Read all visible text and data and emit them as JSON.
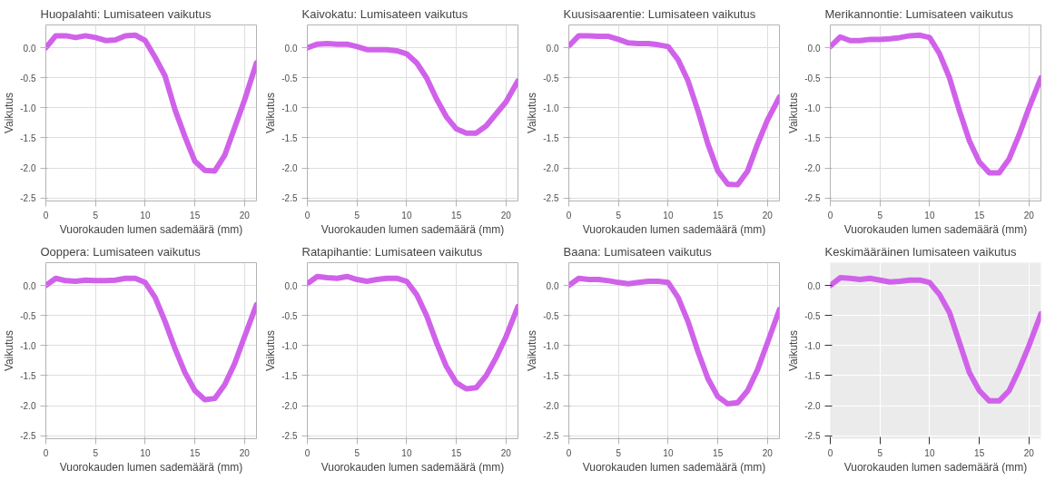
{
  "chart_data": [
    {
      "type": "line",
      "title": "Huopalahti: Lumisateen vaikutus",
      "xlabel": "Vuorokauden lumen sademäärä (mm)",
      "ylabel": "Vaikutus",
      "x": [
        0,
        1,
        2,
        3,
        4,
        5,
        6,
        7,
        8,
        9,
        10,
        11,
        12,
        13,
        14,
        15,
        16,
        17,
        18,
        19,
        20,
        21.2
      ],
      "series": [
        {
          "color": "#d062ea",
          "values": [
            0.0,
            0.2,
            0.2,
            0.17,
            0.2,
            0.17,
            0.12,
            0.13,
            0.2,
            0.21,
            0.12,
            -0.16,
            -0.47,
            -1.03,
            -1.48,
            -1.89,
            -2.04,
            -2.05,
            -1.79,
            -1.33,
            -0.87,
            -0.25
          ]
        }
      ],
      "xlim": [
        0,
        21.2
      ],
      "ylim": [
        -2.55,
        0.38
      ],
      "xticks": [
        0,
        5,
        10,
        15,
        20
      ],
      "yticks": [
        -2.5,
        {
          "value": -2,
          "label": "-2.0"
        },
        -1.5,
        {
          "value": -1,
          "label": "-1.0"
        },
        -0.5,
        {
          "value": 0,
          "label": "0.0"
        }
      ],
      "grid": true,
      "line_style": "solid"
    },
    {
      "type": "line",
      "title": "Kaivokatu: Lumisateen vaikutus",
      "xlabel": "Vuorokauden lumen sademäärä (mm)",
      "ylabel": "Vaikutus",
      "x": [
        0,
        1,
        2,
        3,
        4,
        5,
        6,
        7,
        8,
        9,
        10,
        11,
        12,
        13,
        14,
        15,
        16,
        17,
        18,
        19,
        20,
        21.2
      ],
      "series": [
        {
          "color": "#d062ea",
          "values": [
            0.0,
            0.06,
            0.07,
            0.06,
            0.06,
            0.02,
            -0.03,
            -0.03,
            -0.03,
            -0.05,
            -0.1,
            -0.25,
            -0.5,
            -0.85,
            -1.15,
            -1.35,
            -1.42,
            -1.42,
            -1.3,
            -1.1,
            -0.9,
            -0.55
          ]
        }
      ],
      "xlim": [
        0,
        21.2
      ],
      "ylim": [
        -2.55,
        0.38
      ],
      "xticks": [
        0,
        5,
        10,
        15,
        20
      ],
      "yticks": [
        -2.5,
        {
          "value": -2,
          "label": "-2.0"
        },
        -1.5,
        {
          "value": -1,
          "label": "-1.0"
        },
        -0.5,
        {
          "value": 0,
          "label": "0.0"
        }
      ],
      "grid": true,
      "line_style": "solid"
    },
    {
      "type": "line",
      "title": "Kuusisaarentie: Lumisateen vaikutus",
      "xlabel": "Vuorokauden lumen sademäärä (mm)",
      "ylabel": "Vaikutus",
      "x": [
        0,
        1,
        2,
        3,
        4,
        5,
        6,
        7,
        8,
        9,
        10,
        11,
        12,
        13,
        14,
        15,
        16,
        17,
        18,
        19,
        20,
        21.2
      ],
      "series": [
        {
          "color": "#d062ea",
          "values": [
            0.03,
            0.2,
            0.2,
            0.19,
            0.19,
            0.14,
            0.08,
            0.07,
            0.07,
            0.05,
            0.02,
            -0.2,
            -0.55,
            -1.05,
            -1.6,
            -2.05,
            -2.27,
            -2.28,
            -2.05,
            -1.6,
            -1.2,
            -0.82
          ]
        }
      ],
      "xlim": [
        0,
        21.2
      ],
      "ylim": [
        -2.55,
        0.38
      ],
      "xticks": [
        0,
        5,
        10,
        15,
        20
      ],
      "yticks": [
        -2.5,
        {
          "value": -2,
          "label": "-2.0"
        },
        -1.5,
        {
          "value": -1,
          "label": "-1.0"
        },
        -0.5,
        {
          "value": 0,
          "label": "0.0"
        }
      ],
      "grid": true,
      "line_style": "solid"
    },
    {
      "type": "line",
      "title": "Merikannontie: Lumisateen vaikutus",
      "xlabel": "Vuorokauden lumen sademäärä (mm)",
      "ylabel": "Vaikutus",
      "x": [
        0,
        1,
        2,
        3,
        4,
        5,
        6,
        7,
        8,
        9,
        10,
        11,
        12,
        13,
        14,
        15,
        16,
        17,
        18,
        19,
        20,
        21.2
      ],
      "series": [
        {
          "color": "#d062ea",
          "values": [
            0.02,
            0.18,
            0.12,
            0.12,
            0.14,
            0.14,
            0.15,
            0.17,
            0.2,
            0.21,
            0.17,
            -0.1,
            -0.5,
            -1.05,
            -1.55,
            -1.9,
            -2.08,
            -2.08,
            -1.85,
            -1.45,
            -1.0,
            -0.5
          ]
        }
      ],
      "xlim": [
        0,
        21.2
      ],
      "ylim": [
        -2.55,
        0.38
      ],
      "xticks": [
        0,
        5,
        10,
        15,
        20
      ],
      "yticks": [
        -2.5,
        {
          "value": -2,
          "label": "-2.0"
        },
        -1.5,
        {
          "value": -1,
          "label": "-1.0"
        },
        -0.5,
        {
          "value": 0,
          "label": "0.0"
        }
      ],
      "grid": true,
      "line_style": "solid"
    },
    {
      "type": "line",
      "title": "Ooppera: Lumisateen vaikutus",
      "xlabel": "Vuorokauden lumen sademäärä (mm)",
      "ylabel": "Vaikutus",
      "x": [
        0,
        1,
        2,
        3,
        4,
        5,
        6,
        7,
        8,
        9,
        10,
        11,
        12,
        13,
        14,
        15,
        16,
        17,
        18,
        19,
        20,
        21.2
      ],
      "series": [
        {
          "color": "#d062ea",
          "values": [
            0.0,
            0.12,
            0.08,
            0.07,
            0.09,
            0.08,
            0.08,
            0.09,
            0.12,
            0.12,
            0.05,
            -0.2,
            -0.6,
            -1.05,
            -1.45,
            -1.75,
            -1.9,
            -1.88,
            -1.65,
            -1.3,
            -0.85,
            -0.32
          ]
        }
      ],
      "xlim": [
        0,
        21.2
      ],
      "ylim": [
        -2.55,
        0.38
      ],
      "xticks": [
        0,
        5,
        10,
        15,
        20
      ],
      "yticks": [
        -2.5,
        {
          "value": -2,
          "label": "-2.0"
        },
        -1.5,
        {
          "value": -1,
          "label": "-1.0"
        },
        -0.5,
        {
          "value": 0,
          "label": "0.0"
        }
      ],
      "grid": true,
      "line_style": "solid"
    },
    {
      "type": "line",
      "title": "Ratapihantie: Lumisateen vaikutus",
      "xlabel": "Vuorokauden lumen sademäärä (mm)",
      "ylabel": "Vaikutus",
      "x": [
        0,
        1,
        2,
        3,
        4,
        5,
        6,
        7,
        8,
        9,
        10,
        11,
        12,
        13,
        14,
        15,
        16,
        17,
        18,
        19,
        20,
        21.2
      ],
      "series": [
        {
          "color": "#d062ea",
          "values": [
            0.03,
            0.15,
            0.13,
            0.12,
            0.15,
            0.1,
            0.07,
            0.1,
            0.12,
            0.12,
            0.07,
            -0.15,
            -0.5,
            -0.95,
            -1.35,
            -1.62,
            -1.72,
            -1.7,
            -1.5,
            -1.2,
            -0.85,
            -0.35
          ]
        }
      ],
      "xlim": [
        0,
        21.2
      ],
      "ylim": [
        -2.55,
        0.38
      ],
      "xticks": [
        0,
        5,
        10,
        15,
        20
      ],
      "yticks": [
        -2.5,
        {
          "value": -2,
          "label": "-2.0"
        },
        -1.5,
        {
          "value": -1,
          "label": "-1.0"
        },
        -0.5,
        {
          "value": 0,
          "label": "0.0"
        }
      ],
      "grid": true,
      "line_style": "solid"
    },
    {
      "type": "line",
      "title": "Baana: Lumisateen vaikutus",
      "xlabel": "Vuorokauden lumen sademäärä (mm)",
      "ylabel": "Vaikutus",
      "x": [
        0,
        1,
        2,
        3,
        4,
        5,
        6,
        7,
        8,
        9,
        10,
        11,
        12,
        13,
        14,
        15,
        16,
        17,
        18,
        19,
        20,
        21.2
      ],
      "series": [
        {
          "color": "#d062ea",
          "values": [
            0.0,
            0.12,
            0.1,
            0.1,
            0.08,
            0.05,
            0.03,
            0.05,
            0.07,
            0.07,
            0.05,
            -0.2,
            -0.6,
            -1.1,
            -1.55,
            -1.85,
            -1.97,
            -1.95,
            -1.75,
            -1.4,
            -0.95,
            -0.4
          ]
        }
      ],
      "xlim": [
        0,
        21.2
      ],
      "ylim": [
        -2.55,
        0.38
      ],
      "xticks": [
        0,
        5,
        10,
        15,
        20
      ],
      "yticks": [
        -2.5,
        {
          "value": -2,
          "label": "-2.0"
        },
        -1.5,
        {
          "value": -1,
          "label": "-1.0"
        },
        -0.5,
        {
          "value": 0,
          "label": "0.0"
        }
      ],
      "grid": true,
      "line_style": "solid"
    },
    {
      "type": "line",
      "title": "Keskimääräinen lumisateen vaikutus",
      "xlabel": "Vuorokauden lumen sademäärä (mm)",
      "ylabel": "Vaikutus",
      "x": [
        0,
        1,
        2,
        3,
        4,
        5,
        6,
        7,
        8,
        9,
        10,
        11,
        12,
        13,
        14,
        15,
        16,
        17,
        18,
        19,
        20,
        21.2
      ],
      "series": [
        {
          "color": "#d062ea",
          "values": [
            0.0,
            0.13,
            0.12,
            0.1,
            0.12,
            0.09,
            0.06,
            0.07,
            0.09,
            0.09,
            0.05,
            -0.15,
            -0.45,
            -0.95,
            -1.45,
            -1.75,
            -1.92,
            -1.92,
            -1.75,
            -1.4,
            -1.0,
            -0.47
          ]
        }
      ],
      "xlim": [
        0,
        21.2
      ],
      "ylim": [
        -2.55,
        0.38
      ],
      "xticks": [
        0,
        5,
        10,
        15,
        20
      ],
      "yticks": [
        -2.5,
        {
          "value": -2,
          "label": "-2.0"
        },
        -1.5,
        {
          "value": -1,
          "label": "-1.0"
        },
        -0.5,
        {
          "value": 0,
          "label": "0.0"
        }
      ],
      "grid": true,
      "line_style": "solid"
    }
  ]
}
